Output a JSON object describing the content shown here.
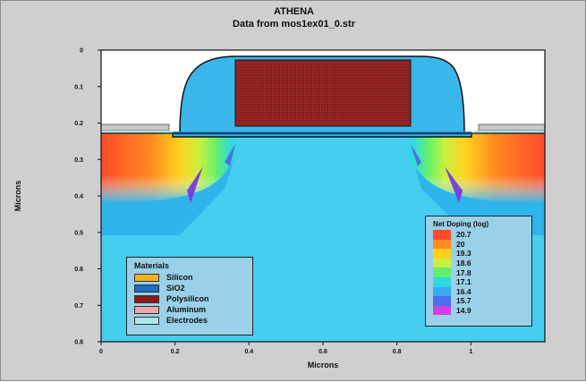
{
  "header": {
    "title": "ATHENA",
    "subtitle": "Data from mos1ex01_0.str"
  },
  "chart_data": {
    "type": "heatmap",
    "title": "ATHENA",
    "subtitle": "Data from mos1ex01_0.str",
    "xlabel": "Microns",
    "ylabel": "Microns",
    "xlim": [
      0,
      1.2
    ],
    "ylim": [
      0.8,
      0
    ],
    "x_ticks": [
      "0",
      "0.2",
      "0.4",
      "0.6",
      "0.8",
      "1"
    ],
    "y_ticks": [
      "0",
      "0.1",
      "0.2",
      "0.3",
      "0.4",
      "0.5",
      "0.6",
      "0.7",
      "0.8"
    ],
    "materials_legend": {
      "title": "Materials",
      "items": [
        {
          "label": "Silicon",
          "color": "#f0b020"
        },
        {
          "label": "SiO2",
          "color": "#1a6ec8"
        },
        {
          "label": "Polysilicon",
          "color": "#8b1a1a"
        },
        {
          "label": "Aluminum",
          "color": "#e8a8a8"
        },
        {
          "label": "Electrodes",
          "color": "#a8e8ec"
        }
      ]
    },
    "doping_legend": {
      "title": "Net Doping (log)",
      "items": [
        {
          "label": "20.7",
          "color": "#ff4a2a"
        },
        {
          "label": "20",
          "color": "#ff8a20"
        },
        {
          "label": "19.3",
          "color": "#ffd020"
        },
        {
          "label": "18.6",
          "color": "#c8f040"
        },
        {
          "label": "17.8",
          "color": "#60f070"
        },
        {
          "label": "17.1",
          "color": "#30d8e0"
        },
        {
          "label": "16.4",
          "color": "#3aa8f0"
        },
        {
          "label": "15.7",
          "color": "#4a70e8"
        },
        {
          "label": "14.9",
          "color": "#d040e0"
        }
      ]
    },
    "colors": {
      "substrate": "#2fb4ec",
      "channel": "#48d0f0",
      "oxide": "#3ab6ea",
      "poly": "#8b2020",
      "electrode": "#a8e8ec",
      "aluminum": "#c8c8c8"
    }
  }
}
